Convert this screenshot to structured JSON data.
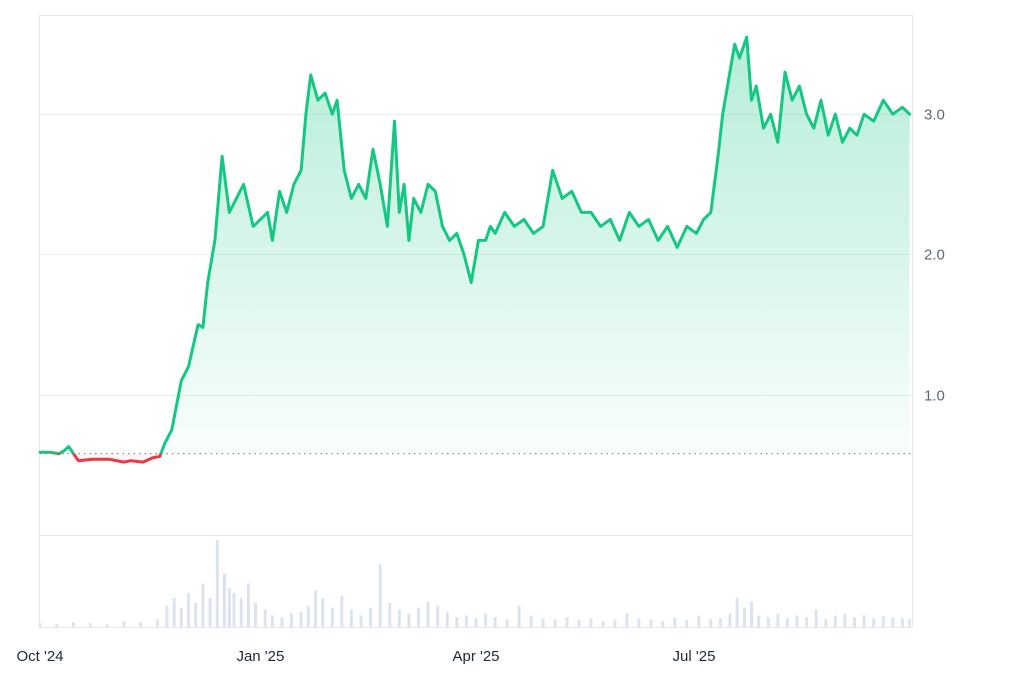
{
  "chart_data": {
    "type": "area",
    "baseline": 0.58,
    "ylim": [
      0.0,
      3.7
    ],
    "y_ticks": [
      {
        "value": 1.0,
        "label": "1.0"
      },
      {
        "value": 2.0,
        "label": "2.0"
      },
      {
        "value": 3.0,
        "label": "3.0"
      }
    ],
    "xlim": [
      "2024-10-01",
      "2025-09-30"
    ],
    "x_ticks": [
      {
        "date": "2024-10-01",
        "label": "Oct '24"
      },
      {
        "date": "2025-01-01",
        "label": "Jan '25"
      },
      {
        "date": "2025-04-01",
        "label": "Apr '25"
      },
      {
        "date": "2025-07-01",
        "label": "Jul '25"
      }
    ],
    "colors": {
      "up_line": "#16c784",
      "down_line": "#ea3943",
      "up_fill": "#16c784",
      "down_fill": "#ea3943",
      "grid": "#eceef2",
      "baseline": "#8a8f99",
      "volume": "#dde3ee"
    },
    "price": {
      "x": [
        "2024-10-01",
        "2024-10-05",
        "2024-10-09",
        "2024-10-11",
        "2024-10-13",
        "2024-10-17",
        "2024-10-23",
        "2024-10-30",
        "2024-11-05",
        "2024-11-08",
        "2024-11-13",
        "2024-11-17",
        "2024-11-20",
        "2024-11-22",
        "2024-11-25",
        "2024-11-29",
        "2024-12-02",
        "2024-12-06",
        "2024-12-08",
        "2024-12-10",
        "2024-12-13",
        "2024-12-16",
        "2024-12-19",
        "2024-12-22",
        "2024-12-25",
        "2024-12-29",
        "2025-01-01",
        "2025-01-04",
        "2025-01-06",
        "2025-01-09",
        "2025-01-12",
        "2025-01-15",
        "2025-01-18",
        "2025-01-20",
        "2025-01-22",
        "2025-01-25",
        "2025-01-28",
        "2025-01-31",
        "2025-02-02",
        "2025-02-05",
        "2025-02-08",
        "2025-02-11",
        "2025-02-14",
        "2025-02-17",
        "2025-02-20",
        "2025-02-23",
        "2025-02-26",
        "2025-02-28",
        "2025-03-02",
        "2025-03-04",
        "2025-03-06",
        "2025-03-09",
        "2025-03-12",
        "2025-03-15",
        "2025-03-18",
        "2025-03-21",
        "2025-03-24",
        "2025-03-27",
        "2025-03-30",
        "2025-04-02",
        "2025-04-05",
        "2025-04-07",
        "2025-04-09",
        "2025-04-13",
        "2025-04-17",
        "2025-04-21",
        "2025-04-25",
        "2025-04-29",
        "2025-05-03",
        "2025-05-07",
        "2025-05-11",
        "2025-05-15",
        "2025-05-19",
        "2025-05-23",
        "2025-05-27",
        "2025-05-31",
        "2025-06-04",
        "2025-06-08",
        "2025-06-12",
        "2025-06-16",
        "2025-06-20",
        "2025-06-24",
        "2025-06-28",
        "2025-07-02",
        "2025-07-05",
        "2025-07-08",
        "2025-07-11",
        "2025-07-13",
        "2025-07-15",
        "2025-07-18",
        "2025-07-20",
        "2025-07-23",
        "2025-07-25",
        "2025-07-27",
        "2025-07-30",
        "2025-08-02",
        "2025-08-05",
        "2025-08-08",
        "2025-08-11",
        "2025-08-14",
        "2025-08-17",
        "2025-08-20",
        "2025-08-23",
        "2025-08-26",
        "2025-08-29",
        "2025-09-01",
        "2025-09-04",
        "2025-09-07",
        "2025-09-10",
        "2025-09-14",
        "2025-09-18",
        "2025-09-22",
        "2025-09-26",
        "2025-09-29"
      ],
      "y": [
        0.59,
        0.59,
        0.58,
        0.6,
        0.63,
        0.53,
        0.54,
        0.54,
        0.52,
        0.53,
        0.52,
        0.55,
        0.56,
        0.65,
        0.75,
        1.1,
        1.2,
        1.5,
        1.48,
        1.8,
        2.1,
        2.7,
        2.3,
        2.4,
        2.5,
        2.2,
        2.25,
        2.3,
        2.1,
        2.45,
        2.3,
        2.5,
        2.6,
        3.0,
        3.28,
        3.1,
        3.15,
        3.0,
        3.1,
        2.6,
        2.4,
        2.5,
        2.4,
        2.75,
        2.5,
        2.2,
        2.95,
        2.3,
        2.5,
        2.1,
        2.4,
        2.3,
        2.5,
        2.45,
        2.2,
        2.1,
        2.15,
        2.0,
        1.8,
        2.1,
        2.1,
        2.2,
        2.15,
        2.3,
        2.2,
        2.25,
        2.15,
        2.2,
        2.6,
        2.4,
        2.45,
        2.3,
        2.3,
        2.2,
        2.25,
        2.1,
        2.3,
        2.2,
        2.25,
        2.1,
        2.2,
        2.05,
        2.2,
        2.15,
        2.25,
        2.3,
        2.7,
        3.0,
        3.2,
        3.5,
        3.4,
        3.55,
        3.1,
        3.2,
        2.9,
        3.0,
        2.8,
        3.3,
        3.1,
        3.2,
        3.0,
        2.9,
        3.1,
        2.85,
        3.0,
        2.8,
        2.9,
        2.85,
        3.0,
        2.95,
        3.1,
        3.0,
        3.05,
        3.0
      ]
    },
    "volume": {
      "x": [
        "2024-10-01",
        "2024-10-08",
        "2024-10-15",
        "2024-10-22",
        "2024-10-29",
        "2024-11-05",
        "2024-11-12",
        "2024-11-19",
        "2024-11-23",
        "2024-11-26",
        "2024-11-29",
        "2024-12-02",
        "2024-12-05",
        "2024-12-08",
        "2024-12-11",
        "2024-12-14",
        "2024-12-17",
        "2024-12-19",
        "2024-12-21",
        "2024-12-24",
        "2024-12-27",
        "2024-12-30",
        "2025-01-03",
        "2025-01-06",
        "2025-01-10",
        "2025-01-14",
        "2025-01-18",
        "2025-01-21",
        "2025-01-24",
        "2025-01-27",
        "2025-01-31",
        "2025-02-04",
        "2025-02-08",
        "2025-02-12",
        "2025-02-16",
        "2025-02-20",
        "2025-02-24",
        "2025-02-28",
        "2025-03-04",
        "2025-03-08",
        "2025-03-12",
        "2025-03-16",
        "2025-03-20",
        "2025-03-24",
        "2025-03-28",
        "2025-04-01",
        "2025-04-05",
        "2025-04-09",
        "2025-04-14",
        "2025-04-19",
        "2025-04-24",
        "2025-04-29",
        "2025-05-04",
        "2025-05-09",
        "2025-05-14",
        "2025-05-19",
        "2025-05-24",
        "2025-05-29",
        "2025-06-03",
        "2025-06-08",
        "2025-06-13",
        "2025-06-18",
        "2025-06-23",
        "2025-06-28",
        "2025-07-03",
        "2025-07-08",
        "2025-07-12",
        "2025-07-16",
        "2025-07-19",
        "2025-07-22",
        "2025-07-25",
        "2025-07-28",
        "2025-08-01",
        "2025-08-05",
        "2025-08-09",
        "2025-08-13",
        "2025-08-17",
        "2025-08-21",
        "2025-08-25",
        "2025-08-29",
        "2025-09-02",
        "2025-09-06",
        "2025-09-10",
        "2025-09-14",
        "2025-09-18",
        "2025-09-22",
        "2025-09-26",
        "2025-09-29"
      ],
      "y": [
        4,
        3,
        5,
        4,
        3,
        6,
        5,
        8,
        22,
        30,
        20,
        35,
        25,
        45,
        30,
        90,
        55,
        40,
        35,
        30,
        45,
        25,
        18,
        12,
        10,
        14,
        16,
        22,
        38,
        30,
        20,
        32,
        18,
        12,
        20,
        65,
        25,
        18,
        14,
        20,
        26,
        22,
        15,
        10,
        12,
        9,
        14,
        10,
        8,
        22,
        12,
        9,
        8,
        10,
        7,
        9,
        6,
        8,
        14,
        9,
        8,
        6,
        10,
        7,
        12,
        8,
        9,
        14,
        30,
        20,
        26,
        12,
        10,
        14,
        9,
        12,
        10,
        18,
        8,
        12,
        14,
        10,
        12,
        9,
        11,
        10,
        9,
        8
      ]
    }
  }
}
